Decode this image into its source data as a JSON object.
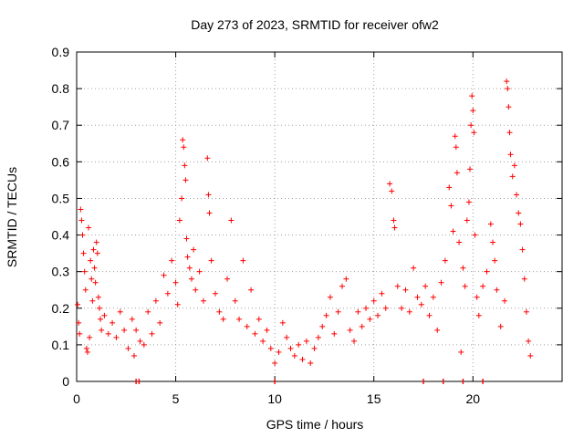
{
  "chart_data": {
    "type": "scatter",
    "title": "Day 273 of 2023, SRMTID for receiver ofw2",
    "xlabel": "GPS time / hours",
    "ylabel": "SRMTID / TECUs",
    "xlim": [
      0,
      24.5
    ],
    "ylim": [
      0,
      0.9
    ],
    "xticks": [
      0,
      5,
      10,
      15,
      20
    ],
    "xtick_labels": [
      "0",
      "5",
      "10",
      "15",
      "20"
    ],
    "yticks": [
      0,
      0.1,
      0.2,
      0.3,
      0.4,
      0.5,
      0.6,
      0.7,
      0.8,
      0.9
    ],
    "ytick_labels": [
      "0",
      "0.1",
      "0.2",
      "0.3",
      "0.4",
      "0.5",
      "0.6",
      "0.7",
      "0.8",
      "0.9"
    ],
    "grid": true,
    "marker": "+",
    "color": "#ff0000",
    "series": [
      {
        "name": "SRMTID",
        "points": [
          [
            0.05,
            0.21
          ],
          [
            0.1,
            0.16
          ],
          [
            0.15,
            0.13
          ],
          [
            0.2,
            0.47
          ],
          [
            0.25,
            0.44
          ],
          [
            0.3,
            0.4
          ],
          [
            0.35,
            0.35
          ],
          [
            0.4,
            0.3
          ],
          [
            0.45,
            0.25
          ],
          [
            0.5,
            0.09
          ],
          [
            0.55,
            0.08
          ],
          [
            0.6,
            0.42
          ],
          [
            0.65,
            0.12
          ],
          [
            0.7,
            0.33
          ],
          [
            0.75,
            0.28
          ],
          [
            0.8,
            0.22
          ],
          [
            0.85,
            0.36
          ],
          [
            0.9,
            0.31
          ],
          [
            0.95,
            0.27
          ],
          [
            1.0,
            0.38
          ],
          [
            1.05,
            0.35
          ],
          [
            1.1,
            0.23
          ],
          [
            1.15,
            0.2
          ],
          [
            1.2,
            0.17
          ],
          [
            1.25,
            0.14
          ],
          [
            1.4,
            0.18
          ],
          [
            1.6,
            0.13
          ],
          [
            1.8,
            0.16
          ],
          [
            2.0,
            0.12
          ],
          [
            2.2,
            0.19
          ],
          [
            2.4,
            0.14
          ],
          [
            2.6,
            0.09
          ],
          [
            2.8,
            0.17
          ],
          [
            2.9,
            0.07
          ],
          [
            3.0,
            0.14
          ],
          [
            3.2,
            0.11
          ],
          [
            3.4,
            0.1
          ],
          [
            3.6,
            0.19
          ],
          [
            3.8,
            0.13
          ],
          [
            4.0,
            0.22
          ],
          [
            4.2,
            0.16
          ],
          [
            4.4,
            0.29
          ],
          [
            4.6,
            0.24
          ],
          [
            4.8,
            0.33
          ],
          [
            5.0,
            0.27
          ],
          [
            5.1,
            0.21
          ],
          [
            5.2,
            0.44
          ],
          [
            5.3,
            0.5
          ],
          [
            5.35,
            0.66
          ],
          [
            5.4,
            0.64
          ],
          [
            5.45,
            0.59
          ],
          [
            5.5,
            0.55
          ],
          [
            5.55,
            0.39
          ],
          [
            5.6,
            0.34
          ],
          [
            5.7,
            0.31
          ],
          [
            5.8,
            0.28
          ],
          [
            5.9,
            0.36
          ],
          [
            6.0,
            0.25
          ],
          [
            6.2,
            0.3
          ],
          [
            6.4,
            0.22
          ],
          [
            6.6,
            0.61
          ],
          [
            6.65,
            0.51
          ],
          [
            6.7,
            0.46
          ],
          [
            6.8,
            0.33
          ],
          [
            7.0,
            0.24
          ],
          [
            7.2,
            0.19
          ],
          [
            7.4,
            0.17
          ],
          [
            7.6,
            0.28
          ],
          [
            7.8,
            0.44
          ],
          [
            8.0,
            0.22
          ],
          [
            8.2,
            0.17
          ],
          [
            8.4,
            0.33
          ],
          [
            8.6,
            0.15
          ],
          [
            8.8,
            0.25
          ],
          [
            9.0,
            0.13
          ],
          [
            9.2,
            0.17
          ],
          [
            9.4,
            0.11
          ],
          [
            9.6,
            0.14
          ],
          [
            9.8,
            0.09
          ],
          [
            10.0,
            0.05
          ],
          [
            10.2,
            0.08
          ],
          [
            10.4,
            0.16
          ],
          [
            10.6,
            0.12
          ],
          [
            10.8,
            0.09
          ],
          [
            11.0,
            0.07
          ],
          [
            11.2,
            0.1
          ],
          [
            11.4,
            0.06
          ],
          [
            11.6,
            0.11
          ],
          [
            11.8,
            0.05
          ],
          [
            12.0,
            0.09
          ],
          [
            12.2,
            0.12
          ],
          [
            12.4,
            0.15
          ],
          [
            12.6,
            0.18
          ],
          [
            12.8,
            0.23
          ],
          [
            13.0,
            0.13
          ],
          [
            13.2,
            0.19
          ],
          [
            13.4,
            0.26
          ],
          [
            13.6,
            0.28
          ],
          [
            13.8,
            0.14
          ],
          [
            14.0,
            0.11
          ],
          [
            14.2,
            0.19
          ],
          [
            14.4,
            0.15
          ],
          [
            14.6,
            0.2
          ],
          [
            14.8,
            0.17
          ],
          [
            15.0,
            0.22
          ],
          [
            15.2,
            0.18
          ],
          [
            15.4,
            0.24
          ],
          [
            15.6,
            0.2
          ],
          [
            15.8,
            0.54
          ],
          [
            15.9,
            0.52
          ],
          [
            16.0,
            0.44
          ],
          [
            16.05,
            0.42
          ],
          [
            16.2,
            0.26
          ],
          [
            16.4,
            0.2
          ],
          [
            16.6,
            0.25
          ],
          [
            16.8,
            0.19
          ],
          [
            17.0,
            0.31
          ],
          [
            17.2,
            0.23
          ],
          [
            17.4,
            0.21
          ],
          [
            17.6,
            0.26
          ],
          [
            17.8,
            0.18
          ],
          [
            18.0,
            0.23
          ],
          [
            18.2,
            0.14
          ],
          [
            18.4,
            0.27
          ],
          [
            18.6,
            0.33
          ],
          [
            18.8,
            0.53
          ],
          [
            18.9,
            0.48
          ],
          [
            19.0,
            0.41
          ],
          [
            19.1,
            0.67
          ],
          [
            19.15,
            0.64
          ],
          [
            19.2,
            0.57
          ],
          [
            19.3,
            0.38
          ],
          [
            19.4,
            0.08
          ],
          [
            19.5,
            0.31
          ],
          [
            19.6,
            0.26
          ],
          [
            19.7,
            0.44
          ],
          [
            19.8,
            0.49
          ],
          [
            19.85,
            0.58
          ],
          [
            19.9,
            0.7
          ],
          [
            19.95,
            0.78
          ],
          [
            20.0,
            0.74
          ],
          [
            20.05,
            0.68
          ],
          [
            20.1,
            0.4
          ],
          [
            20.2,
            0.23
          ],
          [
            20.3,
            0.18
          ],
          [
            20.5,
            0.26
          ],
          [
            20.7,
            0.3
          ],
          [
            20.9,
            0.43
          ],
          [
            21.0,
            0.38
          ],
          [
            21.1,
            0.33
          ],
          [
            21.2,
            0.25
          ],
          [
            21.4,
            0.15
          ],
          [
            21.6,
            0.22
          ],
          [
            21.7,
            0.82
          ],
          [
            21.75,
            0.8
          ],
          [
            21.8,
            0.75
          ],
          [
            21.85,
            0.68
          ],
          [
            21.9,
            0.62
          ],
          [
            22.0,
            0.56
          ],
          [
            22.1,
            0.59
          ],
          [
            22.2,
            0.51
          ],
          [
            22.3,
            0.46
          ],
          [
            22.4,
            0.43
          ],
          [
            22.5,
            0.36
          ],
          [
            22.6,
            0.28
          ],
          [
            22.7,
            0.19
          ],
          [
            22.8,
            0.11
          ],
          [
            22.9,
            0.07
          ]
        ]
      }
    ],
    "rug_x": [
      3.0,
      3.15,
      10.0,
      17.5,
      18.5,
      19.5,
      20.5
    ]
  }
}
